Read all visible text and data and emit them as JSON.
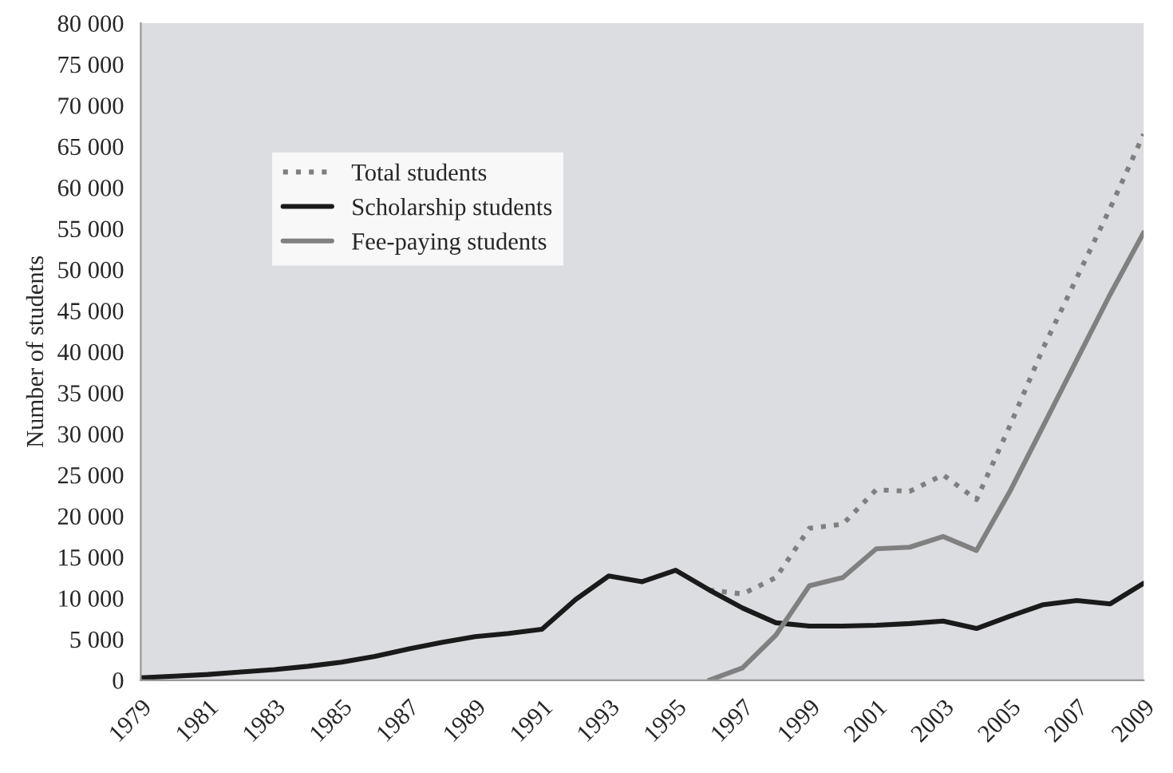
{
  "chart_data": {
    "type": "line",
    "ylabel": "Number of students",
    "x": [
      1979,
      1980,
      1981,
      1982,
      1983,
      1984,
      1985,
      1986,
      1987,
      1988,
      1989,
      1990,
      1991,
      1992,
      1993,
      1994,
      1995,
      1996,
      1997,
      1998,
      1999,
      2000,
      2001,
      2002,
      2003,
      2004,
      2005,
      2006,
      2007,
      2008,
      2009
    ],
    "series": [
      {
        "name": "Total students",
        "color": "#7f7f7f",
        "line_style": "dotted",
        "values": [
          null,
          null,
          null,
          null,
          null,
          null,
          null,
          null,
          null,
          null,
          null,
          null,
          null,
          null,
          null,
          null,
          null,
          11000,
          10500,
          12500,
          18500,
          19000,
          23200,
          23000,
          25000,
          22000,
          31000,
          40500,
          49000,
          57500,
          66500
        ]
      },
      {
        "name": "Scholarship students",
        "color": "#1a1a1a",
        "line_style": "solid",
        "values": [
          300,
          500,
          700,
          1000,
          1300,
          1700,
          2200,
          2900,
          3800,
          4600,
          5300,
          5700,
          6200,
          9800,
          12700,
          12000,
          13400,
          11000,
          8800,
          7000,
          6600,
          6600,
          6700,
          6900,
          7200,
          6300,
          7800,
          9200,
          9700,
          9300,
          11800
        ]
      },
      {
        "name": "Fee-paying students",
        "color": "#808080",
        "line_style": "solid",
        "values": [
          null,
          null,
          null,
          null,
          null,
          null,
          null,
          null,
          null,
          null,
          null,
          null,
          null,
          null,
          null,
          null,
          null,
          0,
          1500,
          5500,
          11500,
          12500,
          16000,
          16200,
          17500,
          15800,
          23000,
          31000,
          39000,
          47000,
          54500
        ]
      }
    ],
    "xlim": [
      1979,
      2009
    ],
    "xticks": [
      1979,
      1981,
      1983,
      1985,
      1987,
      1989,
      1991,
      1993,
      1995,
      1997,
      1999,
      2001,
      2003,
      2005,
      2007,
      2009
    ],
    "ylim": [
      0,
      80000
    ],
    "yticks": [
      0,
      {
        "value": 5000,
        "label": "5 000"
      },
      {
        "value": 10000,
        "label": "10 000"
      },
      {
        "value": 15000,
        "label": "15 000"
      },
      {
        "value": 20000,
        "label": "20 000"
      },
      {
        "value": 25000,
        "label": "25 000"
      },
      {
        "value": 30000,
        "label": "30 000"
      },
      {
        "value": 35000,
        "label": "35 000"
      },
      {
        "value": 40000,
        "label": "40 000"
      },
      {
        "value": 45000,
        "label": "45 000"
      },
      {
        "value": 50000,
        "label": "50 000"
      },
      {
        "value": 55000,
        "label": "55 000"
      },
      {
        "value": 60000,
        "label": "60 000"
      },
      {
        "value": 65000,
        "label": "65 000"
      },
      {
        "value": 70000,
        "label": "70 000"
      },
      {
        "value": 75000,
        "label": "75 000"
      },
      {
        "value": 80000,
        "label": "80 000"
      }
    ],
    "grid": false,
    "legend": "top left"
  }
}
